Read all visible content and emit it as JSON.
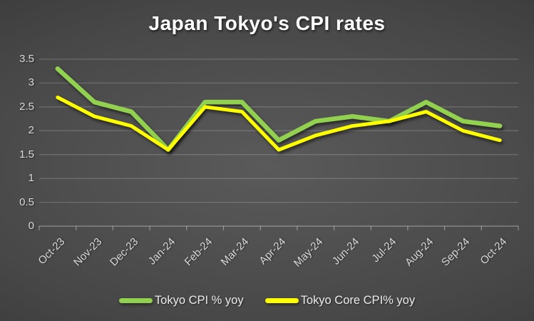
{
  "chart_data": {
    "type": "line",
    "title": "Japan Tokyo's CPI rates",
    "categories": [
      "Oct-23",
      "Nov-23",
      "Dec-23",
      "Jan-24",
      "Feb-24",
      "Mar-24",
      "Apr-24",
      "May-24",
      "Jun-24",
      "Jul-24",
      "Aug-24",
      "Sep-24",
      "Oct-24"
    ],
    "series": [
      {
        "name": "Tokyo CPI % yoy",
        "color": "#92d050",
        "values": [
          3.3,
          2.6,
          2.4,
          1.6,
          2.6,
          2.6,
          1.8,
          2.2,
          2.3,
          2.2,
          2.6,
          2.2,
          2.1
        ]
      },
      {
        "name": "Tokyo Core CPI% yoy",
        "color": "#ffff00",
        "values": [
          2.7,
          2.3,
          2.1,
          1.6,
          2.5,
          2.4,
          1.6,
          1.9,
          2.1,
          2.2,
          2.4,
          2.0,
          1.8
        ]
      }
    ],
    "xlabel": "",
    "ylabel": "",
    "ylim": [
      0,
      3.5
    ],
    "yticks": [
      {
        "value": 0,
        "label": "0"
      },
      {
        "value": 0.5,
        "label": "0.5"
      },
      {
        "value": 1,
        "label": "1"
      },
      {
        "value": 1.5,
        "label": "1.5"
      },
      {
        "value": 2,
        "label": "2"
      },
      {
        "value": 2.5,
        "label": "2.5"
      },
      {
        "value": 3,
        "label": "3"
      },
      {
        "value": 3.5,
        "label": "3.5"
      }
    ],
    "grid": true,
    "legend_position": "bottom"
  },
  "style_colors": {
    "background_center": "#5a5a5a",
    "background_mid": "#474747",
    "background_edge": "#262626",
    "gridline": "rgba(255,255,255,0.20)",
    "axis_line": "rgba(255,255,255,0.38)",
    "axis_text": "#d9d9d9",
    "title_text": "#ffffff"
  }
}
